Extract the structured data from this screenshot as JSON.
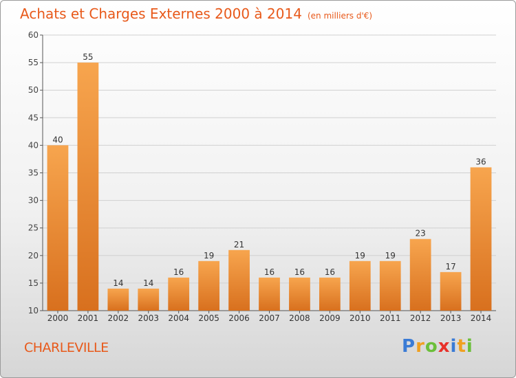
{
  "title": "Achats et Charges Externes 2000 à 2014",
  "unit_note": "(en milliers d'€)",
  "commune": "CHARLEVILLE",
  "logo": {
    "letters": [
      {
        "ch": "P",
        "color": "#3a7bd5"
      },
      {
        "ch": "r",
        "color": "#f0a020"
      },
      {
        "ch": "o",
        "color": "#6bbf3a"
      },
      {
        "ch": "x",
        "color": "#e8312a"
      },
      {
        "ch": "i",
        "color": "#3a7bd5"
      },
      {
        "ch": "t",
        "color": "#f0a020"
      },
      {
        "ch": "i",
        "color": "#6bbf3a"
      }
    ]
  },
  "colors": {
    "accent": "#e8591a",
    "bar_top": "#f7a54e",
    "bar_bottom": "#d8701e",
    "grid": "#d0d0d0"
  },
  "chart_data": {
    "type": "bar",
    "categories": [
      "2000",
      "2001",
      "2002",
      "2003",
      "2004",
      "2005",
      "2006",
      "2007",
      "2008",
      "2009",
      "2010",
      "2011",
      "2012",
      "2013",
      "2014"
    ],
    "values": [
      40,
      55,
      14,
      14,
      16,
      19,
      21,
      16,
      16,
      16,
      19,
      19,
      23,
      17,
      36
    ],
    "ylim": [
      10,
      60
    ],
    "yticks": [
      10,
      15,
      20,
      25,
      30,
      35,
      40,
      45,
      50,
      55,
      60
    ],
    "grid": true,
    "title": "Achats et Charges Externes 2000 à 2014",
    "xlabel": "",
    "ylabel": ""
  }
}
